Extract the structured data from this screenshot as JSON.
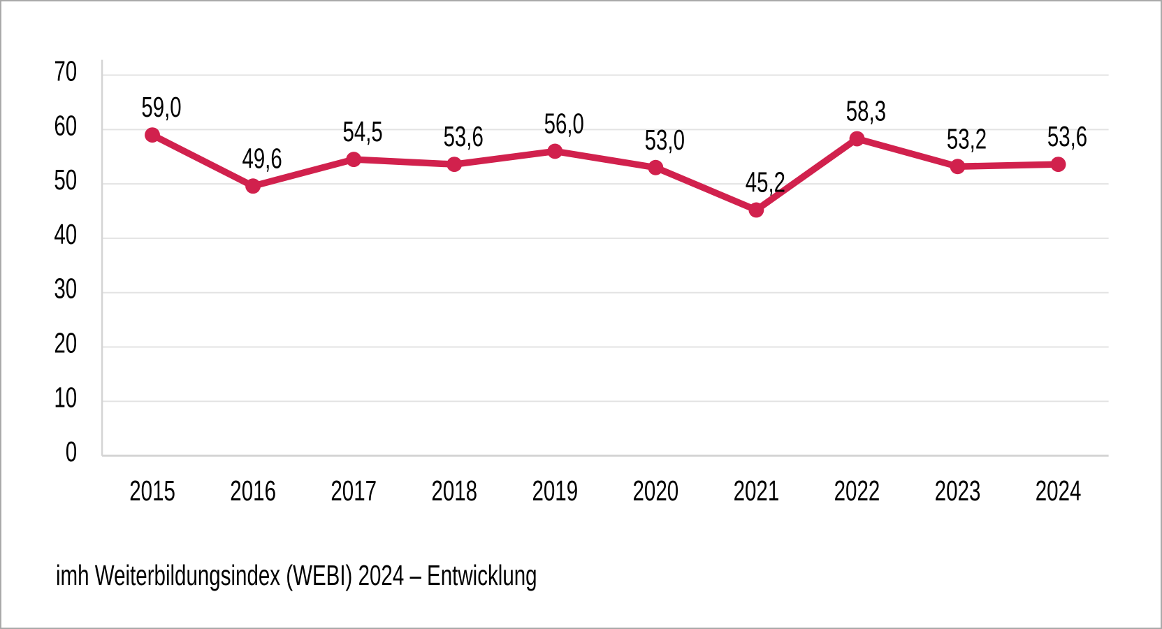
{
  "frame": {
    "background": "#ffffff",
    "border_color": "#a9a9a9"
  },
  "chart_data": {
    "type": "line",
    "caption": "imh Weiterbildungsindex (WEBI) 2024 – Entwicklung",
    "categories": [
      "2015",
      "2016",
      "2017",
      "2018",
      "2019",
      "2020",
      "2021",
      "2022",
      "2023",
      "2024"
    ],
    "series": [
      {
        "values": [
          59.0,
          49.6,
          54.5,
          53.6,
          56.0,
          53.0,
          45.2,
          58.3,
          53.2,
          53.6
        ],
        "color": "#d1214d"
      }
    ],
    "point_labels": [
      "59,0",
      "49,6",
      "54,5",
      "53,6",
      "56,0",
      "53,0",
      "45,2",
      "58,3",
      "53,2",
      "53,6"
    ],
    "y_ticks": [
      "70",
      "60",
      "50",
      "40",
      "30",
      "20",
      "10",
      "0"
    ],
    "ylim": [
      0,
      70
    ],
    "xlabel": "",
    "ylabel": "",
    "grid": "horizontal",
    "legend": "none",
    "colors": {
      "line": "#d1214d",
      "marker": "#d1214d",
      "gridline": "#e3e3e3",
      "axis_line": "#d4d4d4",
      "tick_label": "#000000",
      "data_label": "#000000"
    }
  }
}
